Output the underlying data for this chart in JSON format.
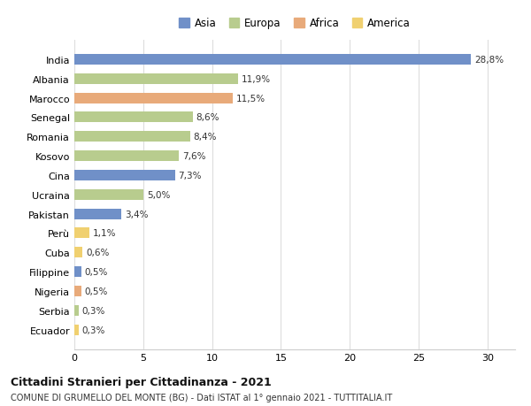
{
  "categories": [
    "India",
    "Albania",
    "Marocco",
    "Senegal",
    "Romania",
    "Kosovo",
    "Cina",
    "Ucraina",
    "Pakistan",
    "Perù",
    "Cuba",
    "Filippine",
    "Nigeria",
    "Serbia",
    "Ecuador"
  ],
  "values": [
    28.8,
    11.9,
    11.5,
    8.6,
    8.4,
    7.6,
    7.3,
    5.0,
    3.4,
    1.1,
    0.6,
    0.5,
    0.5,
    0.3,
    0.3
  ],
  "labels": [
    "28,8%",
    "11,9%",
    "11,5%",
    "8,6%",
    "8,4%",
    "7,6%",
    "7,3%",
    "5,0%",
    "3,4%",
    "1,1%",
    "0,6%",
    "0,5%",
    "0,5%",
    "0,3%",
    "0,3%"
  ],
  "colors": [
    "#7090c8",
    "#b8cc8e",
    "#e8aa7a",
    "#b8cc8e",
    "#b8cc8e",
    "#b8cc8e",
    "#7090c8",
    "#b8cc8e",
    "#7090c8",
    "#f0d070",
    "#f0d070",
    "#7090c8",
    "#e8aa7a",
    "#b8cc8e",
    "#f0d070"
  ],
  "legend_labels": [
    "Asia",
    "Europa",
    "Africa",
    "America"
  ],
  "legend_colors": [
    "#7090c8",
    "#b8cc8e",
    "#e8aa7a",
    "#f0d070"
  ],
  "title": "Cittadini Stranieri per Cittadinanza - 2021",
  "subtitle": "COMUNE DI GRUMELLO DEL MONTE (BG) - Dati ISTAT al 1° gennaio 2021 - TUTTITALIA.IT",
  "xlim": [
    0,
    32
  ],
  "xticks": [
    0,
    5,
    10,
    15,
    20,
    25,
    30
  ],
  "background_color": "#ffffff",
  "bar_height": 0.55
}
